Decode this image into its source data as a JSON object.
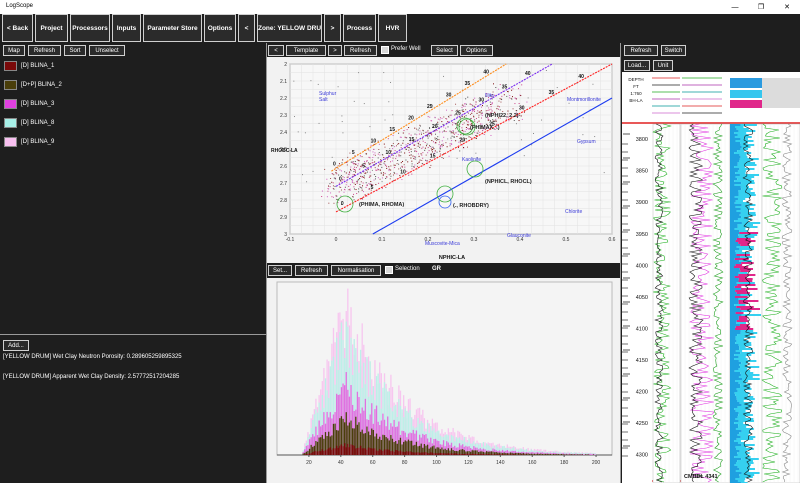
{
  "window": {
    "title": "LogScope",
    "minimize": "—",
    "restore": "❐",
    "close": "✕"
  },
  "toolbar": {
    "back": "< Back",
    "project": "Project",
    "processors": "Processors",
    "inputs": "Inputs",
    "parameter_store": "Parameter Store",
    "options": "Options",
    "prev": "<",
    "zone": "Zone: YELLOW DRU",
    "next": ">",
    "process": "Process",
    "hvr": "HVR"
  },
  "left_panel": {
    "map": "Map",
    "refresh": "Refresh",
    "sort": "Sort",
    "unselect": "Unselect",
    "layers": [
      {
        "label": "[D] BLINA_1",
        "color": "#7a0a0a"
      },
      {
        "label": "[D+P] BLINA_2",
        "color": "#4a3e0a"
      },
      {
        "label": "[D] BLINA_3",
        "color": "#e040e0"
      },
      {
        "label": "[D] BLINA_8",
        "color": "#a8f0e8"
      },
      {
        "label": "[D] BLINA_9",
        "color": "#f8c0f0"
      }
    ],
    "add": "Add...",
    "params": [
      "[YELLOW DRUM] Wet Clay Neutron Porosity: 0.289605259895325",
      "[YELLOW DRUM] Apparent Wet Clay Density: 2.57772517204285"
    ]
  },
  "crossplot_toolbar": {
    "prev": "<",
    "template": "Template",
    "next": ">",
    "refresh": "Refresh",
    "prefer_well": "Prefer Well",
    "select": "Select",
    "options": "Options"
  },
  "crossplot": {
    "ylabel": "RHOBC-LA",
    "xlabel": "NPHIC-LA",
    "yticks": [
      "2",
      "2.1",
      "2.2",
      "2.3",
      "2.4",
      "2.5",
      "2.6",
      "2.7",
      "2.8",
      "2.9",
      "3"
    ],
    "xticks": [
      "-0.1",
      "0",
      "0.1",
      "0.2",
      "0.3",
      "0.4",
      "0.5",
      "0.6"
    ],
    "minerals": [
      "Sulphur",
      "Salt",
      "Montmorillonite",
      "Gypsum",
      "Kaolinite",
      "Chlorite",
      "Glauconite",
      "Muscovite-Mica",
      "Illite"
    ],
    "points": [
      "(NPHI22, 2.2)",
      "(PHIMAX, .)",
      "(NPHICL, RHOCL)",
      "(., RHOBDRY)",
      "(PHIMA, RHOMA)"
    ],
    "line_ticks_orange": [
      "0",
      "5",
      "10",
      "15",
      "20",
      "25",
      "30",
      "35",
      "40"
    ],
    "line_ticks_purple": [
      "0",
      "5",
      "10",
      "15",
      "20",
      "25",
      "30",
      "35",
      "40"
    ],
    "line_ticks_red": [
      "0",
      "5",
      "10",
      "15",
      "20",
      "25",
      "30",
      "35",
      "40"
    ]
  },
  "histogram_toolbar": {
    "set": "Set...",
    "refresh": "Refresh",
    "normalisation": "Normalisation",
    "selection": "Selection",
    "curve": "GR"
  },
  "histogram": {
    "xticks": [
      "20",
      "40",
      "60",
      "80",
      "100",
      "120",
      "140",
      "160",
      "180",
      "200"
    ]
  },
  "log_panel": {
    "refresh": "Refresh",
    "switch": "Switch",
    "load": "Load...",
    "unit": "Unit",
    "header": [
      "DEPTH",
      "FT",
      "1:760",
      "BH-LA"
    ],
    "depths": [
      "3800",
      "3850",
      "3900",
      "3950",
      "4000",
      "4050",
      "4100",
      "4150",
      "4200",
      "4250",
      "4300"
    ],
    "bottom_label": "CMHDL 4341"
  }
}
